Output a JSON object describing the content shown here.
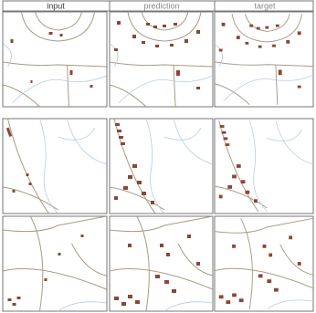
{
  "header": {
    "columns": [
      "input",
      "prediction",
      "target"
    ]
  }
}
